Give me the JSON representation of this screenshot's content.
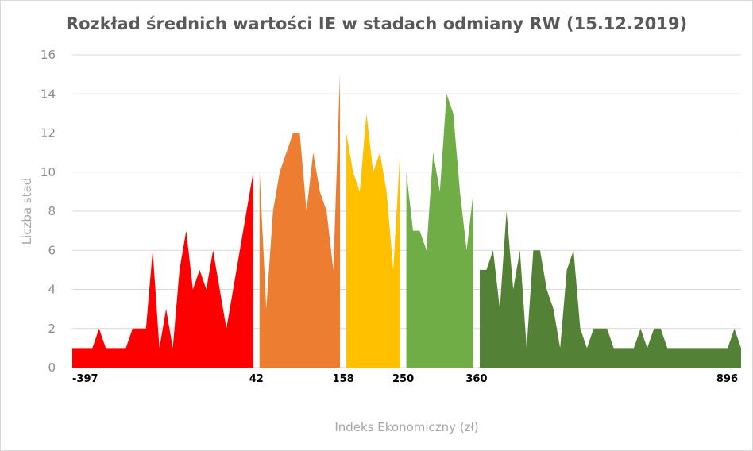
{
  "chart_data": {
    "type": "area",
    "title": "Rozkład średnich wartości IE w stadach odmiany RW (15.12.2019)",
    "xlabel": "Indeks Ekonomiczny (zł)",
    "ylabel": "Liczba stad",
    "ylim": [
      0,
      16
    ],
    "yticks": [
      "0",
      "2",
      "4",
      "6",
      "8",
      "10",
      "12",
      "14",
      "16"
    ],
    "grid": true,
    "boundary_labels": [
      "-397",
      "42",
      "158",
      "250",
      "360",
      "896"
    ],
    "series": [
      {
        "color": "#ff0000",
        "values": [
          1,
          1,
          1,
          1,
          2,
          1,
          1,
          1,
          1,
          2,
          2,
          2,
          6,
          1,
          3,
          1,
          5,
          7,
          4,
          5,
          4,
          6,
          4,
          2,
          4,
          6,
          8,
          10
        ]
      },
      {
        "color": "#ed7d31",
        "values": [
          10,
          3,
          8,
          10,
          11,
          12,
          12,
          8,
          11,
          9,
          8,
          5,
          15
        ]
      },
      {
        "color": "#ffc000",
        "values": [
          12,
          10,
          9,
          13,
          10,
          11,
          9,
          5,
          11
        ]
      },
      {
        "color": "#70ad47",
        "values": [
          10,
          7,
          7,
          6,
          11,
          9,
          14,
          13,
          9,
          6,
          9
        ]
      },
      {
        "color": "#538135",
        "values": [
          5,
          5,
          6,
          3,
          8,
          4,
          6,
          1,
          6,
          6,
          4,
          3,
          1,
          5,
          6,
          2,
          1,
          2,
          2,
          2,
          1,
          1,
          1,
          1,
          2,
          1,
          2,
          2,
          1,
          1,
          1,
          1,
          1,
          1,
          1,
          1,
          1,
          1,
          2,
          1
        ]
      }
    ]
  }
}
